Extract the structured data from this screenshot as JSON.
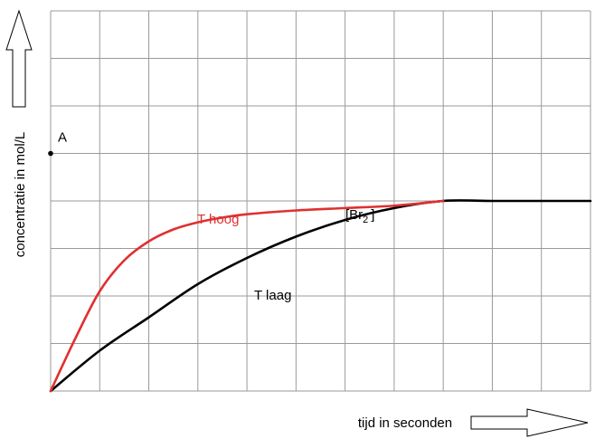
{
  "chart_data": {
    "type": "line",
    "xlabel": "tijd in seconden",
    "ylabel": "concentratie in mol/L",
    "xlim": [
      0,
      11
    ],
    "ylim": [
      0,
      8
    ],
    "grid": true,
    "series": [
      {
        "name": "T hoog",
        "color": "#e03030",
        "x": [
          0,
          0.5,
          1,
          1.5,
          2,
          2.5,
          3,
          3.5,
          4,
          5,
          6,
          7,
          8
        ],
        "y": [
          0,
          1.1,
          2.1,
          2.75,
          3.15,
          3.4,
          3.55,
          3.65,
          3.72,
          3.8,
          3.85,
          3.9,
          4.0
        ]
      },
      {
        "name": "T laag",
        "color": "#000000",
        "x": [
          0,
          1,
          2,
          3,
          4,
          5,
          6,
          7,
          8,
          9,
          10,
          11
        ],
        "y": [
          0,
          0.85,
          1.55,
          2.25,
          2.8,
          3.25,
          3.6,
          3.85,
          4.0,
          4.0,
          4.0,
          4.0
        ]
      }
    ],
    "annotations": {
      "point_a": {
        "label": "A",
        "x": 0,
        "y": 5
      },
      "br2": {
        "prefix": "[Br",
        "sub": "2",
        "suffix": "]"
      }
    }
  }
}
